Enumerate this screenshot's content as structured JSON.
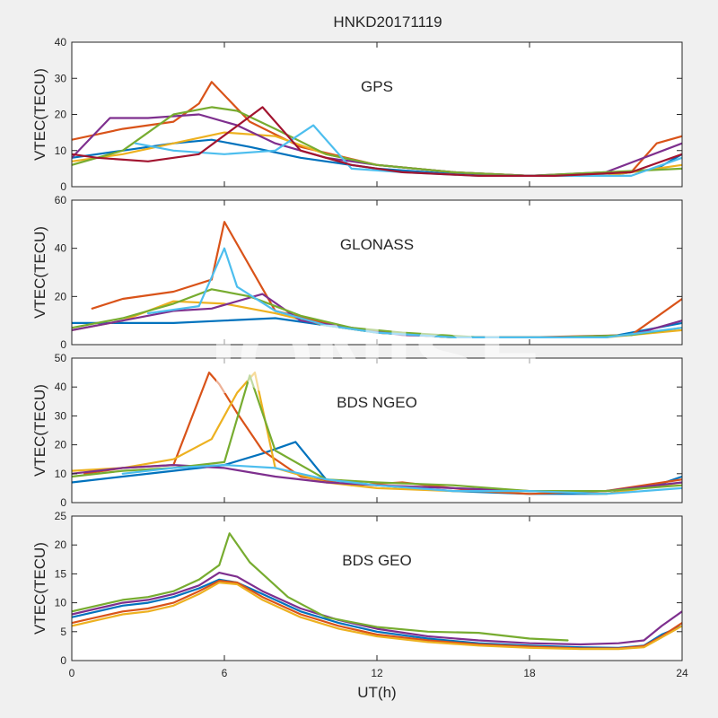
{
  "chart_data": {
    "type": "line",
    "title": "HNKD20171119",
    "xlabel": "UT(h)",
    "ylabel": "VTEC(TECU)",
    "xlim": [
      0,
      24
    ],
    "xticks": [
      0,
      6,
      12,
      18,
      24
    ],
    "watermark": "IONISE",
    "panels": [
      {
        "label": "GPS",
        "ylim": [
          0,
          40
        ],
        "yticks": [
          0,
          10,
          20,
          30,
          40
        ],
        "series": [
          {
            "color": "#0072BD",
            "x": [
              0,
              2,
              4,
              5.5,
              7,
              9,
              12,
              15,
              18,
              21,
              23,
              24
            ],
            "y": [
              8,
              10,
              12,
              13,
              11,
              8,
              5,
              3.5,
              3,
              3,
              5,
              9
            ]
          },
          {
            "color": "#D95319",
            "x": [
              0,
              2,
              4,
              5,
              5.5,
              7,
              9,
              12,
              15,
              18,
              22,
              23,
              24
            ],
            "y": [
              13,
              16,
              18,
              23,
              29,
              18,
              11,
              6,
              4,
              3,
              4,
              12,
              14
            ]
          },
          {
            "color": "#EDB120",
            "x": [
              0,
              2,
              4,
              6,
              8,
              10,
              12,
              15,
              18,
              21,
              24
            ],
            "y": [
              7,
              9,
              12,
              15,
              14,
              9,
              6,
              4,
              3,
              3,
              6
            ]
          },
          {
            "color": "#7E2F8E",
            "x": [
              0,
              1.5,
              3,
              5,
              6.5,
              8,
              10,
              12,
              15,
              18,
              21,
              24
            ],
            "y": [
              8,
              19,
              19,
              20,
              17,
              12,
              8,
              6,
              4,
              3,
              4,
              12
            ]
          },
          {
            "color": "#77AC30",
            "x": [
              0,
              2,
              4,
              5.5,
              6.5,
              8,
              10,
              12,
              15,
              18,
              21,
              24
            ],
            "y": [
              6,
              10,
              20,
              22,
              21,
              16,
              9,
              6,
              4,
              3,
              4,
              5
            ]
          },
          {
            "color": "#4DBEEE",
            "x": [
              2.5,
              4,
              6,
              8,
              9.5,
              11,
              13,
              16,
              19,
              22,
              24
            ],
            "y": [
              12,
              10,
              9,
              10,
              17,
              5,
              4,
              3,
              3,
              3,
              8
            ]
          },
          {
            "color": "#A2142F",
            "x": [
              0,
              1,
              3,
              5,
              7.5,
              9,
              11,
              13,
              16,
              19,
              22,
              24
            ],
            "y": [
              9,
              8,
              7,
              9,
              22,
              10,
              6,
              4,
              3,
              3,
              4,
              9
            ]
          }
        ]
      },
      {
        "label": "GLONASS",
        "ylim": [
          0,
          60
        ],
        "yticks": [
          0,
          20,
          40,
          60
        ],
        "series": [
          {
            "color": "#0072BD",
            "x": [
              0,
              2,
              4,
              6,
              8,
              10,
              12,
              15,
              18,
              21,
              24
            ],
            "y": [
              9,
              9,
              9,
              10,
              11,
              8,
              5,
              3,
              3,
              3,
              9
            ]
          },
          {
            "color": "#D95319",
            "x": [
              0.8,
              2,
              4,
              5.5,
              6,
              8,
              10,
              12,
              15,
              18,
              22,
              24
            ],
            "y": [
              15,
              19,
              22,
              27,
              51,
              14,
              9,
              5,
              3,
              3,
              4,
              19
            ]
          },
          {
            "color": "#EDB120",
            "x": [
              0,
              2,
              4,
              6,
              8,
              10,
              12,
              15,
              18,
              21,
              24
            ],
            "y": [
              6,
              10,
              18,
              17,
              13,
              8,
              5,
              3,
              3,
              3,
              6
            ]
          },
          {
            "color": "#7E2F8E",
            "x": [
              0,
              2,
              4,
              5.5,
              7.5,
              9,
              11,
              13,
              16,
              19,
              22,
              24
            ],
            "y": [
              6,
              10,
              14,
              15,
              21,
              10,
              7,
              4,
              3,
              3,
              4,
              10
            ]
          },
          {
            "color": "#77AC30",
            "x": [
              0,
              2,
              4,
              5.5,
              7,
              9,
              11,
              13,
              16,
              19,
              22,
              24
            ],
            "y": [
              7,
              11,
              17,
              23,
              20,
              12,
              7,
              5,
              3,
              3,
              4,
              7
            ]
          },
          {
            "color": "#4DBEEE",
            "x": [
              3,
              5,
              6,
              6.5,
              8,
              10,
              12,
              15,
              18,
              21,
              24
            ],
            "y": [
              13,
              16,
              40,
              24,
              14,
              8,
              5,
              3,
              3,
              3,
              7
            ]
          }
        ]
      },
      {
        "label": "BDS NGEO",
        "ylim": [
          0,
          50
        ],
        "yticks": [
          0,
          10,
          20,
          30,
          40,
          50
        ],
        "series": [
          {
            "color": "#0072BD",
            "x": [
              0,
              2,
              4,
              6,
              7.5,
              8.8,
              10,
              12,
              15,
              18,
              21,
              23,
              24
            ],
            "y": [
              7,
              9,
              11,
              13,
              17,
              21,
              8,
              6,
              4,
              3,
              3,
              6,
              9
            ]
          },
          {
            "color": "#D95319",
            "x": [
              0.5,
              2,
              4,
              5.4,
              5.8,
              6.5,
              7.5,
              9,
              11,
              13,
              16,
              18,
              21,
              24
            ],
            "y": [
              10,
              12,
              13,
              45,
              41,
              31,
              18,
              9,
              6,
              7,
              4,
              3,
              4,
              8
            ]
          },
          {
            "color": "#EDB120",
            "x": [
              0,
              2,
              4,
              5.5,
              6.5,
              7.2,
              8,
              10,
              12,
              15,
              18,
              21,
              24
            ],
            "y": [
              11,
              12,
              15,
              22,
              38,
              45,
              12,
              7,
              5,
              4,
              4,
              3,
              7
            ]
          },
          {
            "color": "#7E2F8E",
            "x": [
              0,
              2,
              4,
              6,
              8,
              10,
              12,
              15,
              18,
              21,
              24
            ],
            "y": [
              10,
              12,
              13,
              12,
              9,
              7,
              6,
              5,
              4,
              4,
              7
            ]
          },
          {
            "color": "#77AC30",
            "x": [
              0,
              2,
              4,
              6,
              7,
              8,
              10,
              12,
              15,
              18,
              21,
              24
            ],
            "y": [
              9,
              11,
              12,
              14,
              44,
              18,
              8,
              7,
              6,
              4,
              4,
              6
            ]
          },
          {
            "color": "#4DBEEE",
            "x": [
              2,
              4,
              6,
              8,
              10,
              12,
              15,
              18,
              21,
              24
            ],
            "y": [
              10,
              12,
              13,
              12,
              8,
              6,
              4,
              4,
              3,
              5
            ]
          }
        ]
      },
      {
        "label": "BDS GEO",
        "ylim": [
          0,
          25
        ],
        "yticks": [
          0,
          5,
          10,
          15,
          20,
          25
        ],
        "series": [
          {
            "color": "#0072BD",
            "x": [
              0,
              1,
              2,
              3,
              4,
              5,
              5.8,
              6.5,
              7.5,
              9,
              10.5,
              12,
              14,
              16,
              18,
              20,
              21.5,
              22.5,
              23.2,
              24
            ],
            "y": [
              7.5,
              8.5,
              9.5,
              10,
              11,
              12.5,
              14,
              13.5,
              11.5,
              8.5,
              6.5,
              5,
              3.8,
              3,
              2.6,
              2.3,
              2.2,
              2.6,
              4.5,
              6
            ]
          },
          {
            "color": "#D95319",
            "x": [
              0,
              1,
              2,
              3,
              4,
              5,
              5.8,
              6.5,
              7.5,
              9,
              10.5,
              12,
              14,
              16,
              18,
              20,
              21.5,
              22.5,
              23.2,
              24
            ],
            "y": [
              6.5,
              7.5,
              8.5,
              9,
              10,
              12,
              13.8,
              13.5,
              11,
              8,
              6,
              4.5,
              3.5,
              2.8,
              2.4,
              2.1,
              2.1,
              2.5,
              4.2,
              6.5
            ]
          },
          {
            "color": "#EDB120",
            "x": [
              0,
              1,
              2,
              3,
              4,
              5,
              5.8,
              6.5,
              7.5,
              9,
              10.5,
              12,
              14,
              16,
              18,
              20,
              21.5,
              22.5,
              23.2,
              24
            ],
            "y": [
              6,
              7,
              8,
              8.5,
              9.5,
              11.5,
              13.5,
              13.2,
              10.5,
              7.5,
              5.5,
              4.2,
              3.2,
              2.6,
              2.2,
              2,
              2,
              2.3,
              4,
              6
            ]
          },
          {
            "color": "#7E2F8E",
            "x": [
              0,
              1,
              2,
              3,
              4,
              5,
              5.8,
              6.5,
              7.5,
              9,
              10.5,
              12,
              14,
              16,
              18,
              20,
              21.5,
              22.5,
              23.2,
              24
            ],
            "y": [
              8,
              9,
              10,
              10.5,
              11.5,
              13,
              15.2,
              14.5,
              12,
              9,
              7,
              5.5,
              4.2,
              3.5,
              3,
              2.8,
              3,
              3.5,
              6,
              8.5
            ]
          },
          {
            "color": "#77AC30",
            "x": [
              0,
              1,
              2,
              3,
              4,
              5,
              5.8,
              6.2,
              7,
              8.5,
              10,
              12,
              14,
              16,
              18,
              19.5
            ],
            "y": [
              8.5,
              9.5,
              10.5,
              11,
              12,
              14,
              16.5,
              22,
              17,
              11,
              7.5,
              5.8,
              5,
              4.8,
              3.8,
              3.5
            ]
          }
        ]
      }
    ]
  }
}
